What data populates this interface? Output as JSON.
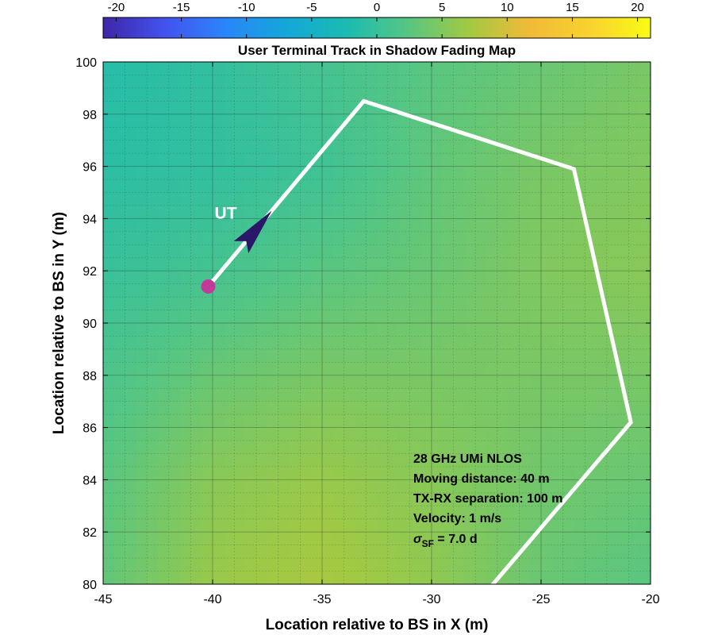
{
  "chart_data": {
    "type": "heatmap",
    "title": "User Terminal Track in Shadow Fading Map",
    "xlabel": "Location relative to BS in X (m)",
    "ylabel": "Location relative to BS in Y (m)",
    "xlim": [
      -45,
      -20
    ],
    "ylim": [
      80,
      100
    ],
    "xticks": [
      -45,
      -40,
      -35,
      -30,
      -25,
      -20
    ],
    "yticks": [
      80,
      82,
      84,
      86,
      88,
      90,
      92,
      94,
      96,
      98,
      100
    ],
    "grid": true,
    "colorbar": {
      "location": "top",
      "range": [
        -21,
        21
      ],
      "ticks": [
        -20,
        -15,
        -10,
        -5,
        0,
        5,
        10,
        15,
        20
      ],
      "colormap": [
        "#3e26a8",
        "#4352ee",
        "#2a85fa",
        "#13a7d9",
        "#1bbbb1",
        "#56c683",
        "#a1c943",
        "#f0ba37",
        "#f9d22f",
        "#f9fb15"
      ]
    },
    "shadow_fading_field": {
      "x": [
        -45,
        -40,
        -35,
        -30,
        -25,
        -20
      ],
      "y": [
        100,
        96,
        92,
        88,
        84,
        80
      ],
      "values": [
        [
          -1.5,
          -0.5,
          1.0,
          2.5,
          3.5,
          4.5
        ],
        [
          -1.0,
          -0.5,
          0.5,
          3.0,
          4.5,
          5.0
        ],
        [
          0.0,
          1.0,
          2.5,
          3.5,
          5.0,
          5.5
        ],
        [
          1.5,
          3.5,
          4.5,
          4.5,
          4.5,
          4.5
        ],
        [
          2.5,
          5.5,
          6.5,
          5.5,
          4.0,
          3.5
        ],
        [
          3.0,
          6.5,
          7.5,
          6.0,
          3.5,
          2.5
        ]
      ]
    },
    "track": {
      "color": "#ffffff",
      "x": [
        -40.2,
        -33.1,
        -23.5,
        -20.9,
        -27.6
      ],
      "y": [
        91.4,
        98.5,
        95.9,
        86.2,
        79.6
      ]
    },
    "start_marker": {
      "x": -40.2,
      "y": 91.4,
      "color": "#c03a9a"
    },
    "ut_arrow": {
      "tip_x": -37.3,
      "tip_y": 94.3,
      "color": "#2a1768",
      "label": "UT",
      "label_x": -39.4,
      "label_y": 94.0
    },
    "annotation": {
      "lines": [
        "28 GHz UMi NLOS",
        "Moving distance: 40 m",
        "TX-RX separation: 100 m",
        "Velocity: 1 m/s"
      ],
      "sigma_symbol": "σ",
      "sigma_subscript": "SF",
      "sigma_value": " = 7.0 d"
    }
  }
}
